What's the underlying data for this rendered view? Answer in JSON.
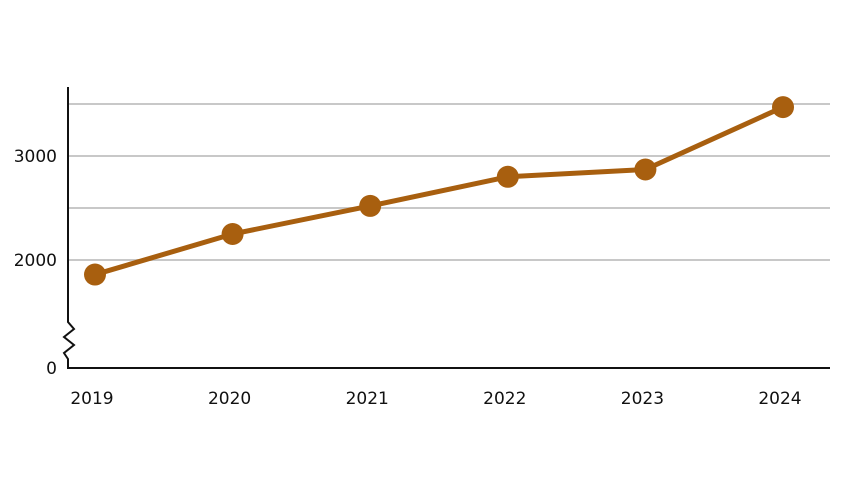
{
  "chart_data": {
    "type": "line",
    "title": "",
    "xlabel": "",
    "ylabel": "",
    "categories": [
      "2019",
      "2020",
      "2021",
      "2022",
      "2023",
      "2024"
    ],
    "series": [
      {
        "values": [
          1860,
          2250,
          2520,
          2800,
          2870,
          3470
        ]
      }
    ],
    "y_axis_break": true,
    "ylim": [
      1500,
      3500
    ],
    "y_ticks": [
      0,
      2000,
      3000
    ],
    "y_tick_labels": [
      "0",
      "2000",
      "3000"
    ],
    "gridlines": [
      2000,
      2500,
      3000,
      3500
    ],
    "grid": true,
    "legend": "none",
    "colors": {
      "line": "#a85f0f",
      "grid": "#c8c8c8",
      "axis": "#111111"
    }
  }
}
